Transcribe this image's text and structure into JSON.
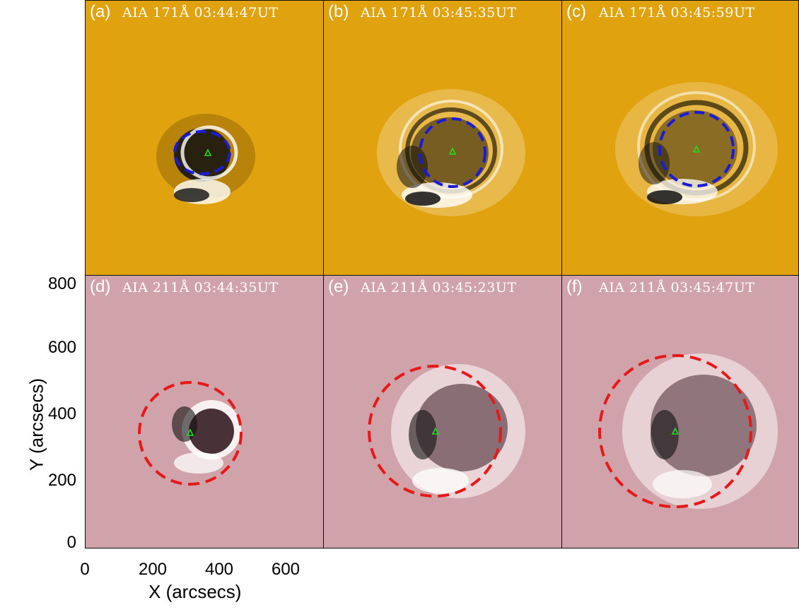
{
  "panels": [
    {
      "label": "(a)",
      "title": "AIA  171Å 03:44:47UT"
    },
    {
      "label": "(b)",
      "title": "AIA  171Å 03:45:35UT"
    },
    {
      "label": "(c)",
      "title": "AIA  171Å 03:45:59UT"
    },
    {
      "label": "(d)",
      "title": "AIA  211Å 03:44:35UT"
    },
    {
      "label": "(e)",
      "title": "AIA  211Å 03:45:23UT"
    },
    {
      "label": "(f)",
      "title": "AIA  211Å 03:45:47UT"
    }
  ],
  "axes": {
    "x_title": "X (arcsecs)",
    "y_title": "Y (arcsecs)",
    "x_ticks": [
      "0",
      "200",
      "400",
      "600"
    ],
    "y_ticks": [
      "800",
      "600",
      "400",
      "200",
      "0"
    ]
  },
  "colors": {
    "aia171_bg": "#e0a20f",
    "aia211_bg": "#cfa3a9",
    "circle_171": "#1a1adb",
    "circle_211": "#e81818",
    "marker": "#22dd22"
  }
}
